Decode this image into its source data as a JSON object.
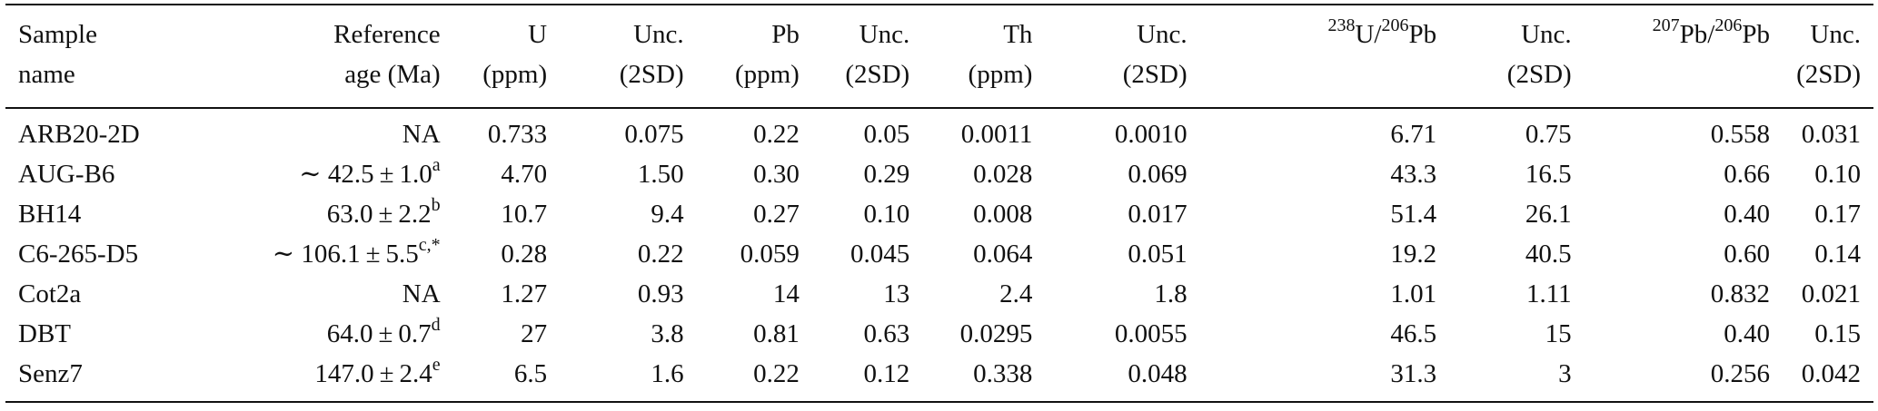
{
  "table": {
    "headers": [
      {
        "line1": "Sample",
        "line2": "name"
      },
      {
        "line1": "Reference",
        "line2": "age (Ma)"
      },
      {
        "line1": "U",
        "line2": "(ppm)"
      },
      {
        "line1": "Unc.",
        "line2": "(2SD)"
      },
      {
        "line1": "Pb",
        "line2": "(ppm)"
      },
      {
        "line1": "Unc.",
        "line2": "(2SD)"
      },
      {
        "line1": "Th",
        "line2": "(ppm)"
      },
      {
        "line1": "Unc.",
        "line2": "(2SD)"
      },
      {
        "sup1": "238",
        "base1": "U/",
        "sup2": "206",
        "base2": "Pb"
      },
      {
        "line1": "Unc.",
        "line2": "(2SD)"
      },
      {
        "sup1": "207",
        "base1": "Pb/",
        "sup2": "206",
        "base2": "Pb"
      },
      {
        "line1": "Unc.",
        "line2": "(2SD)"
      }
    ],
    "rows": [
      {
        "name": "ARB20-2D",
        "age": {
          "prefix": "",
          "value": "NA",
          "sup": ""
        },
        "cells": [
          "0.733",
          "0.075",
          "0.22",
          "0.05",
          "0.0011",
          "0.0010",
          "6.71",
          "0.75",
          "0.558",
          "0.031"
        ]
      },
      {
        "name": "AUG-B6",
        "age": {
          "prefix": "∼ ",
          "value": "42.5",
          "pm": "±",
          "err": "1.0",
          "sup": "a"
        },
        "cells": [
          "4.70",
          "1.50",
          "0.30",
          "0.29",
          "0.028",
          "0.069",
          "43.3",
          "16.5",
          "0.66",
          "0.10"
        ]
      },
      {
        "name": "BH14",
        "age": {
          "prefix": "",
          "value": "63.0",
          "pm": "±",
          "err": "2.2",
          "sup": "b"
        },
        "cells": [
          "10.7",
          "9.4",
          "0.27",
          "0.10",
          "0.008",
          "0.017",
          "51.4",
          "26.1",
          "0.40",
          "0.17"
        ]
      },
      {
        "name": "C6-265-D5",
        "age": {
          "prefix": "∼ ",
          "value": "106.1",
          "pm": "±",
          "err": "5.5",
          "sup": "c,*"
        },
        "cells": [
          "0.28",
          "0.22",
          "0.059",
          "0.045",
          "0.064",
          "0.051",
          "19.2",
          "40.5",
          "0.60",
          "0.14"
        ]
      },
      {
        "name": "Cot2a",
        "age": {
          "prefix": "",
          "value": "NA",
          "sup": ""
        },
        "cells": [
          "1.27",
          "0.93",
          "14",
          "13",
          "2.4",
          "1.8",
          "1.01",
          "1.11",
          "0.832",
          "0.021"
        ]
      },
      {
        "name": "DBT",
        "age": {
          "prefix": "",
          "value": "64.0",
          "pm": "±",
          "err": "0.7",
          "sup": "d"
        },
        "cells": [
          "27",
          "3.8",
          "0.81",
          "0.63",
          "0.0295",
          "0.0055",
          "46.5",
          "15",
          "0.40",
          "0.15"
        ]
      },
      {
        "name": "Senz7",
        "age": {
          "prefix": "",
          "value": "147.0",
          "pm": "±",
          "err": "2.4",
          "sup": "e"
        },
        "cells": [
          "6.5",
          "1.6",
          "0.22",
          "0.12",
          "0.338",
          "0.048",
          "31.3",
          "3",
          "0.256",
          "0.042"
        ]
      }
    ]
  }
}
